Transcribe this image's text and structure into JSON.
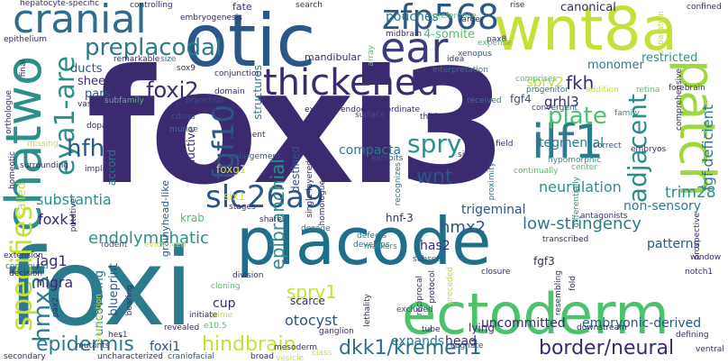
{
  "words": [
    {
      "text": "foxi3",
      "color": "#3b2a6f"
    },
    {
      "text": "foxi",
      "color": "#2c7a8c"
    },
    {
      "text": "placode",
      "color": "#1f6f8b"
    },
    {
      "text": "otic",
      "color": "#2a5785"
    },
    {
      "text": "wnt8a",
      "color": "#c6e03a"
    },
    {
      "text": "ectoderm",
      "color": "#4cc26c"
    },
    {
      "text": "chatwo",
      "color": "#2e8e8a"
    },
    {
      "text": "patch",
      "color": "#9fd83e"
    },
    {
      "text": "ear",
      "color": "#3b3a7e"
    },
    {
      "text": "cranial",
      "color": "#2d6d8e"
    },
    {
      "text": "thickened",
      "color": "#3b2a6f"
    },
    {
      "text": "zfp568",
      "color": "#2a5785"
    },
    {
      "text": "ilf1",
      "color": "#2c7a8c"
    },
    {
      "text": "slc26a9",
      "color": "#2a5785"
    },
    {
      "text": "specifies",
      "color": "#c6e03a"
    },
    {
      "text": "fgf10",
      "color": "#2a5785"
    },
    {
      "text": "eya1-are",
      "color": "#2e8e8a"
    },
    {
      "text": "preplacodal",
      "color": "#2c7a8c"
    },
    {
      "text": "hmx3",
      "color": "#2c7a8c"
    },
    {
      "text": "adjacent",
      "color": "#2a8d8a"
    },
    {
      "text": "plate",
      "color": "#4cc26c"
    },
    {
      "text": "spry",
      "color": "#2e8e8a"
    },
    {
      "text": "hfh",
      "color": "#2a5785"
    },
    {
      "text": "foxj2",
      "color": "#3b2a6f"
    },
    {
      "text": "epidermis",
      "color": "#2c7a8c"
    },
    {
      "text": "hindbrain",
      "color": "#c6e03a"
    },
    {
      "text": "dkk1/kremen1",
      "color": "#2d6d8e"
    },
    {
      "text": "border/neural",
      "color": "#3b2a6f"
    },
    {
      "text": "spry1",
      "color": "#c6e03a"
    },
    {
      "text": "hmx2",
      "color": "#2a5785"
    },
    {
      "text": "low-stringency",
      "color": "#2c7a8c"
    },
    {
      "text": "endolymphatic",
      "color": "#2e8e8a"
    },
    {
      "text": "wnt",
      "color": "#2a5785"
    },
    {
      "text": "fkh",
      "color": "#3b2a6f"
    },
    {
      "text": "fgf-deficient",
      "color": "#2c7a8c"
    },
    {
      "text": "trim28",
      "color": "#2e8e8a"
    },
    {
      "text": "neurulation",
      "color": "#2e8e8a"
    },
    {
      "text": "spry2",
      "color": "#c6e03a"
    },
    {
      "text": "grhl3",
      "color": "#3b2a6f"
    },
    {
      "text": "epibranchial",
      "color": "#2e8e8a"
    },
    {
      "text": "foxk1",
      "color": "#3b2a6f"
    },
    {
      "text": "jag1",
      "color": "#3b2a6f"
    },
    {
      "text": "otocyst",
      "color": "#2a5785"
    },
    {
      "text": "foxi1",
      "color": "#2a5785"
    },
    {
      "text": "head",
      "color": "#3b2a6f"
    },
    {
      "text": "expands",
      "color": "#2c7a8c"
    },
    {
      "text": "uncommitted",
      "color": "#3b2a6f"
    },
    {
      "text": "embryonic-derived",
      "color": "#2a5785"
    },
    {
      "text": "substantia",
      "color": "#2e8e8a"
    },
    {
      "text": "nigra",
      "color": "#3b2a6f"
    },
    {
      "text": "has2",
      "color": "#3b2a6f"
    },
    {
      "text": "tegmental",
      "color": "#2c7a8c"
    },
    {
      "text": "compacta",
      "color": "#2c7a8c"
    },
    {
      "text": "pouches",
      "color": "#2c7a8c"
    },
    {
      "text": "4-somite",
      "color": "#4cc26c"
    },
    {
      "text": "canonical",
      "color": "#3b2a6f"
    },
    {
      "text": "monomer",
      "color": "#2c7a8c"
    },
    {
      "text": "restricted",
      "color": "#2e8e8a"
    },
    {
      "text": "fgf4",
      "color": "#2a5785"
    },
    {
      "text": "sheet",
      "color": "#3b2a6f"
    },
    {
      "text": "ducts",
      "color": "#2a5785"
    },
    {
      "text": "pars",
      "color": "#2a5785"
    },
    {
      "text": "called",
      "color": "#c6e03a"
    },
    {
      "text": "hnf-3",
      "color": "#3b2a6f"
    },
    {
      "text": "trigeminal",
      "color": "#2a5785"
    },
    {
      "text": "non-sensory",
      "color": "#2c7a8c"
    },
    {
      "text": "patterns",
      "color": "#2a5785"
    },
    {
      "text": "fgf3",
      "color": "#3b2a6f"
    },
    {
      "text": "blueprint",
      "color": "#2a5785"
    },
    {
      "text": "cup",
      "color": "#3b2a6f"
    },
    {
      "text": "scarce",
      "color": "#3b2a6f"
    },
    {
      "text": "uncovering",
      "color": "#2c7a8c"
    },
    {
      "text": "lying",
      "color": "#3b2a6f"
    },
    {
      "text": "six1",
      "color": "#c6e03a"
    },
    {
      "text": "foxg1",
      "color": "#c6e03a"
    },
    {
      "text": "krab",
      "color": "#4cc26c"
    },
    {
      "text": "accord",
      "color": "#2c7a8c"
    },
    {
      "text": "fate",
      "color": "#3b2a6f"
    },
    {
      "text": "structures",
      "color": "#2c7a8c"
    },
    {
      "text": "mandibular",
      "color": "#3b2a6f"
    },
    {
      "text": "inductive",
      "color": "#3b2a6f"
    },
    {
      "text": "grainyhead-like",
      "color": "#2a5785"
    },
    {
      "text": "destined",
      "color": "#2a5785"
    },
    {
      "text": "hepatocyte-specific",
      "color": "#3b2a6f"
    },
    {
      "text": "embryogenesis",
      "color": "#3b2a6f"
    },
    {
      "text": "search",
      "color": "#3b2a6f"
    },
    {
      "text": "midbrain",
      "color": "#3b2a6f"
    },
    {
      "text": "pax8",
      "color": "#3b2a6f"
    },
    {
      "text": "xenopus",
      "color": "#2a5785"
    },
    {
      "text": "expense",
      "color": "#4cc26c"
    },
    {
      "text": "preference",
      "color": "#4cc26c"
    },
    {
      "text": "interpretation",
      "color": "#2c7a8c"
    },
    {
      "text": "epithelium",
      "color": "#3b2a6f"
    },
    {
      "text": "remarkable",
      "color": "#3b2a6f"
    },
    {
      "text": "conjunction",
      "color": "#3b2a6f"
    },
    {
      "text": "branchial",
      "color": "#2a5785"
    },
    {
      "text": "hearing",
      "color": "#3b2a6f"
    },
    {
      "text": "domain",
      "color": "#3b2a6f"
    },
    {
      "text": "cdnas",
      "color": "#2a5785"
    },
    {
      "text": "dopamine",
      "color": "#3b2a6f"
    },
    {
      "text": "murine",
      "color": "#2c7a8c"
    },
    {
      "text": "augment",
      "color": "#3b2a6f"
    },
    {
      "text": "enlargement",
      "color": "#2a5785"
    },
    {
      "text": "stages",
      "color": "#3b2a6f"
    },
    {
      "text": "explant",
      "color": "#3b2a6f"
    },
    {
      "text": "endoderm",
      "color": "#3b2a6f"
    },
    {
      "text": "coordinate",
      "color": "#3b2a6f"
    },
    {
      "text": "received",
      "color": "#2c7a8c"
    },
    {
      "text": "convergent",
      "color": "#2a5785"
    },
    {
      "text": "progenitor",
      "color": "#2c7a8c"
    },
    {
      "text": "comprises",
      "color": "#4cc26c"
    },
    {
      "text": "hypomorphic",
      "color": "#2e8e8a"
    },
    {
      "text": "field",
      "color": "#3b2a6f"
    },
    {
      "text": "signs",
      "color": "#3b2a6f"
    },
    {
      "text": "correct",
      "color": "#2a5785"
    },
    {
      "text": "embryos",
      "color": "#3b2a6f"
    },
    {
      "text": "center",
      "color": "#4cc26c"
    },
    {
      "text": "continually",
      "color": "#4cc26c"
    },
    {
      "text": "family",
      "color": "#2e8e8a"
    },
    {
      "text": "retina",
      "color": "#4cc26c"
    },
    {
      "text": "forebrain",
      "color": "#3b2a6f"
    },
    {
      "text": "confined",
      "color": "#3b2a6f"
    },
    {
      "text": "rodent",
      "color": "#2a5785"
    },
    {
      "text": "evidenced",
      "color": "#c6e03a"
    },
    {
      "text": "division",
      "color": "#3b2a6f"
    },
    {
      "text": "markers",
      "color": "#2e8e8a"
    },
    {
      "text": "subsets",
      "color": "#2a5785"
    },
    {
      "text": "transcribed",
      "color": "#3b2a6f"
    },
    {
      "text": "window",
      "color": "#3b2a6f"
    },
    {
      "text": "notch1",
      "color": "#3b2a6f"
    },
    {
      "text": "cloning",
      "color": "#4cc26c"
    },
    {
      "text": "prime",
      "color": "#c6e03a"
    },
    {
      "text": "initiate",
      "color": "#3b2a6f"
    },
    {
      "text": "ganglion",
      "color": "#3b2a6f"
    },
    {
      "text": "excluded",
      "color": "#2a5785"
    },
    {
      "text": "cognate",
      "color": "#2a5785"
    },
    {
      "text": "craniofacial",
      "color": "#2a5785"
    },
    {
      "text": "broad",
      "color": "#3b2a6f"
    },
    {
      "text": "mutants",
      "color": "#3b2a6f"
    },
    {
      "text": "hes1",
      "color": "#3b2a6f"
    },
    {
      "text": "uncharacterized",
      "color": "#3b2a6f"
    },
    {
      "text": "class",
      "color": "#c6e03a"
    },
    {
      "text": "revealed",
      "color": "#3b2a6f"
    },
    {
      "text": "downstream",
      "color": "#3b2a6f"
    },
    {
      "text": "dosage",
      "color": "#2c7a8c"
    },
    {
      "text": "prospective",
      "color": "#3b2a6f"
    },
    {
      "text": "defects",
      "color": "#2c7a8c"
    },
    {
      "text": "develops",
      "color": "#2c7a8c"
    },
    {
      "text": "pax2",
      "color": "#3b2a6f"
    },
    {
      "text": "bearing",
      "color": "#3b2a6f"
    },
    {
      "text": "e10.5",
      "color": "#4cc26c"
    },
    {
      "text": "decision",
      "color": "#3b2a6f"
    },
    {
      "text": "extension",
      "color": "#3b2a6f"
    },
    {
      "text": "homeotic",
      "color": "#3b2a6f"
    },
    {
      "text": "putative",
      "color": "#3b2a6f"
    },
    {
      "text": "surrounding",
      "color": "#3b2a6f"
    },
    {
      "text": "implicates",
      "color": "#3b2a6f"
    },
    {
      "text": "vast",
      "color": "#3b2a6f"
    },
    {
      "text": "subfamily",
      "color": "#4cc26c"
    },
    {
      "text": "size",
      "color": "#2c7a8c"
    },
    {
      "text": "sox9",
      "color": "#3b2a6f"
    },
    {
      "text": "idea",
      "color": "#3b2a6f"
    },
    {
      "text": "larger",
      "color": "#3b2a6f"
    },
    {
      "text": "closure",
      "color": "#3b2a6f"
    },
    {
      "text": "resembling",
      "color": "#3b2a6f"
    },
    {
      "text": "fold",
      "color": "#3b2a6f"
    },
    {
      "text": "secondary",
      "color": "#3b2a6f"
    },
    {
      "text": "ventral",
      "color": "#3b2a6f"
    },
    {
      "text": "controlling",
      "color": "#3b2a6f"
    },
    {
      "text": "orthologue",
      "color": "#3b2a6f"
    },
    {
      "text": "mesoderm",
      "color": "#3b2a6f"
    },
    {
      "text": "tube",
      "color": "#3b2a6f"
    },
    {
      "text": "lethality",
      "color": "#3b2a6f"
    },
    {
      "text": "protocol",
      "color": "#3b2a6f"
    },
    {
      "text": "reciprocal",
      "color": "#3b2a6f"
    },
    {
      "text": "surface",
      "color": "#2a5785"
    },
    {
      "text": "thick",
      "color": "#3b2a6f"
    },
    {
      "text": "share",
      "color": "#3b2a6f"
    },
    {
      "text": "single-layered",
      "color": "#3b2a6f"
    },
    {
      "text": "homologue",
      "color": "#3b2a6f"
    },
    {
      "text": "exhibits",
      "color": "#2a5785"
    },
    {
      "text": "recognizes",
      "color": "#2c7a8c"
    },
    {
      "text": "proximity",
      "color": "#2c7a8c"
    },
    {
      "text": "antagonists",
      "color": "#3b2a6f"
    },
    {
      "text": "comprehensive",
      "color": "#3b2a6f"
    },
    {
      "text": "separation",
      "color": "#c6e03a"
    },
    {
      "text": "rise",
      "color": "#3b2a6f"
    },
    {
      "text": "array",
      "color": "#4cc26c"
    },
    {
      "text": "final",
      "color": "#3b2a6f"
    },
    {
      "text": "missing",
      "color": "#c6e03a"
    },
    {
      "text": "compound",
      "color": "#2c7a8c"
    },
    {
      "text": "hybridization",
      "color": "#c6e03a"
    },
    {
      "text": "preceded",
      "color": "#c6e03a"
    },
    {
      "text": "vesicle",
      "color": "#c6e03a"
    },
    {
      "text": "defining",
      "color": "#3b2a6f"
    },
    {
      "text": "addition",
      "color": "#c6e03a"
    },
    {
      "text": "differentially",
      "color": "#2e8e8a"
    }
  ]
}
